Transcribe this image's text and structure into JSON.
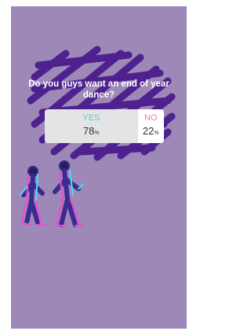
{
  "poll": {
    "question": "Do you guys want an end of year dance?",
    "unit": "%",
    "options": [
      {
        "label": "YES",
        "percent": 78,
        "color": "#5ec6d6"
      },
      {
        "label": "NO",
        "percent": 22,
        "color": "#f27d8c"
      }
    ]
  }
}
